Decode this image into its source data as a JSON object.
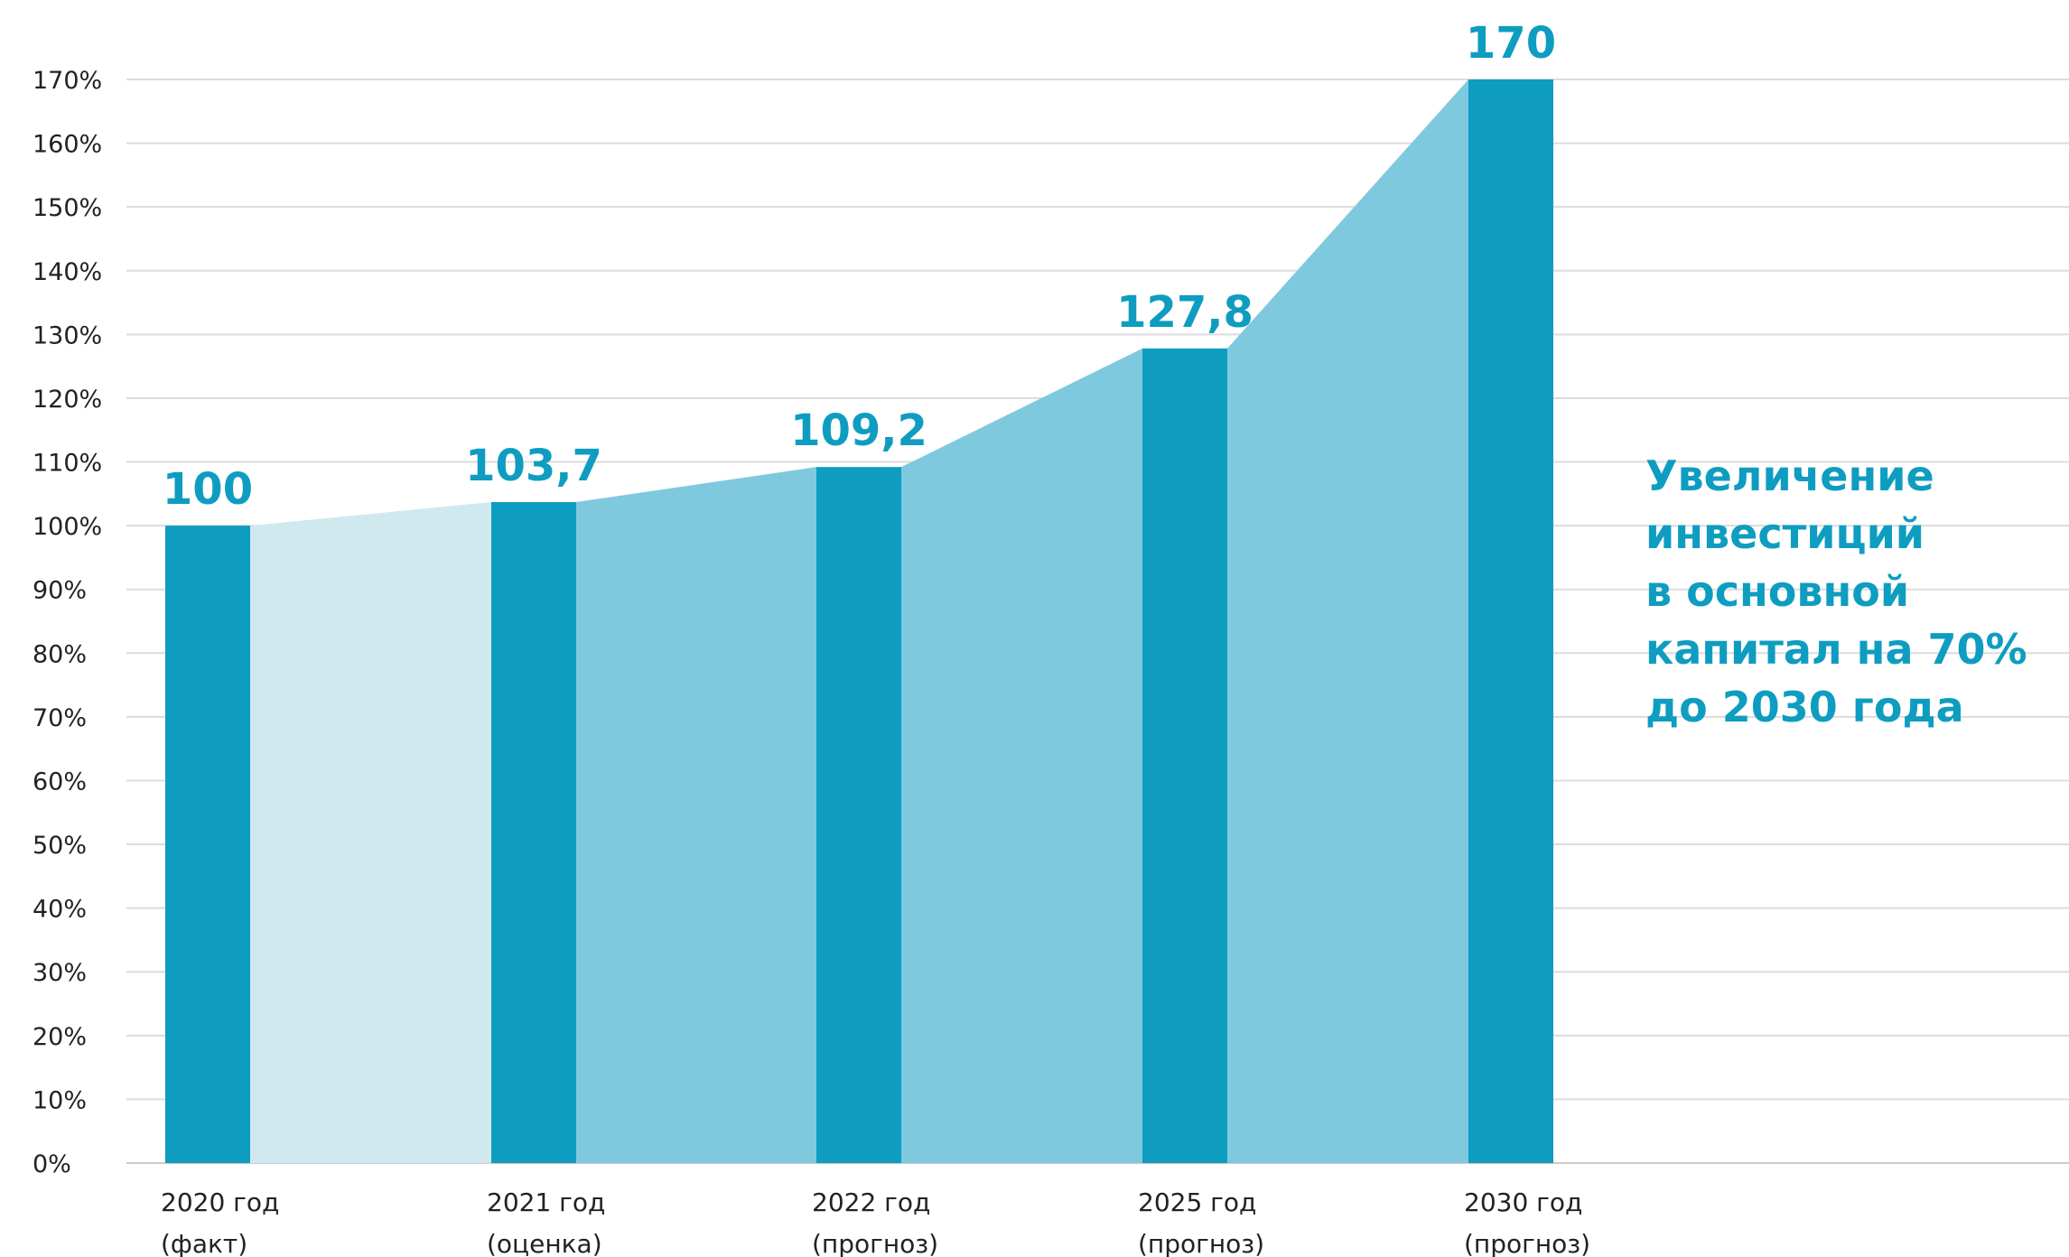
{
  "chart_data": {
    "type": "bar",
    "categories": [
      [
        "2020 год",
        "(факт)"
      ],
      [
        "2021 год",
        "(оценка)"
      ],
      [
        "2022 год",
        "(прогноз)"
      ],
      [
        "2025 год",
        "(прогноз)"
      ],
      [
        "2030 год",
        "(прогноз)"
      ]
    ],
    "values": [
      100,
      103.7,
      109.2,
      127.8,
      170
    ],
    "value_labels": [
      "100",
      "103,7",
      "109,2",
      "127,8",
      "170"
    ],
    "y_ticks": [
      "0%",
      "10%",
      "20%",
      "30%",
      "40%",
      "50%",
      "60%",
      "70%",
      "80%",
      "90%",
      "100%",
      "110%",
      "120%",
      "130%",
      "140%",
      "150%",
      "160%",
      "170%"
    ],
    "ylim": [
      0,
      170
    ],
    "grid": true,
    "area_fill": true,
    "annotation": [
      "Увеличение",
      "инвестиций",
      "в основной",
      "капитал на 70%",
      "до 2030 года"
    ],
    "colors": {
      "bar": "#0e9dc0",
      "area_first": "#cfe9ef",
      "area": "#7fc9de",
      "label": "#0e9dc0",
      "grid": "#dcdcdc",
      "axis": "#cccccc"
    }
  }
}
